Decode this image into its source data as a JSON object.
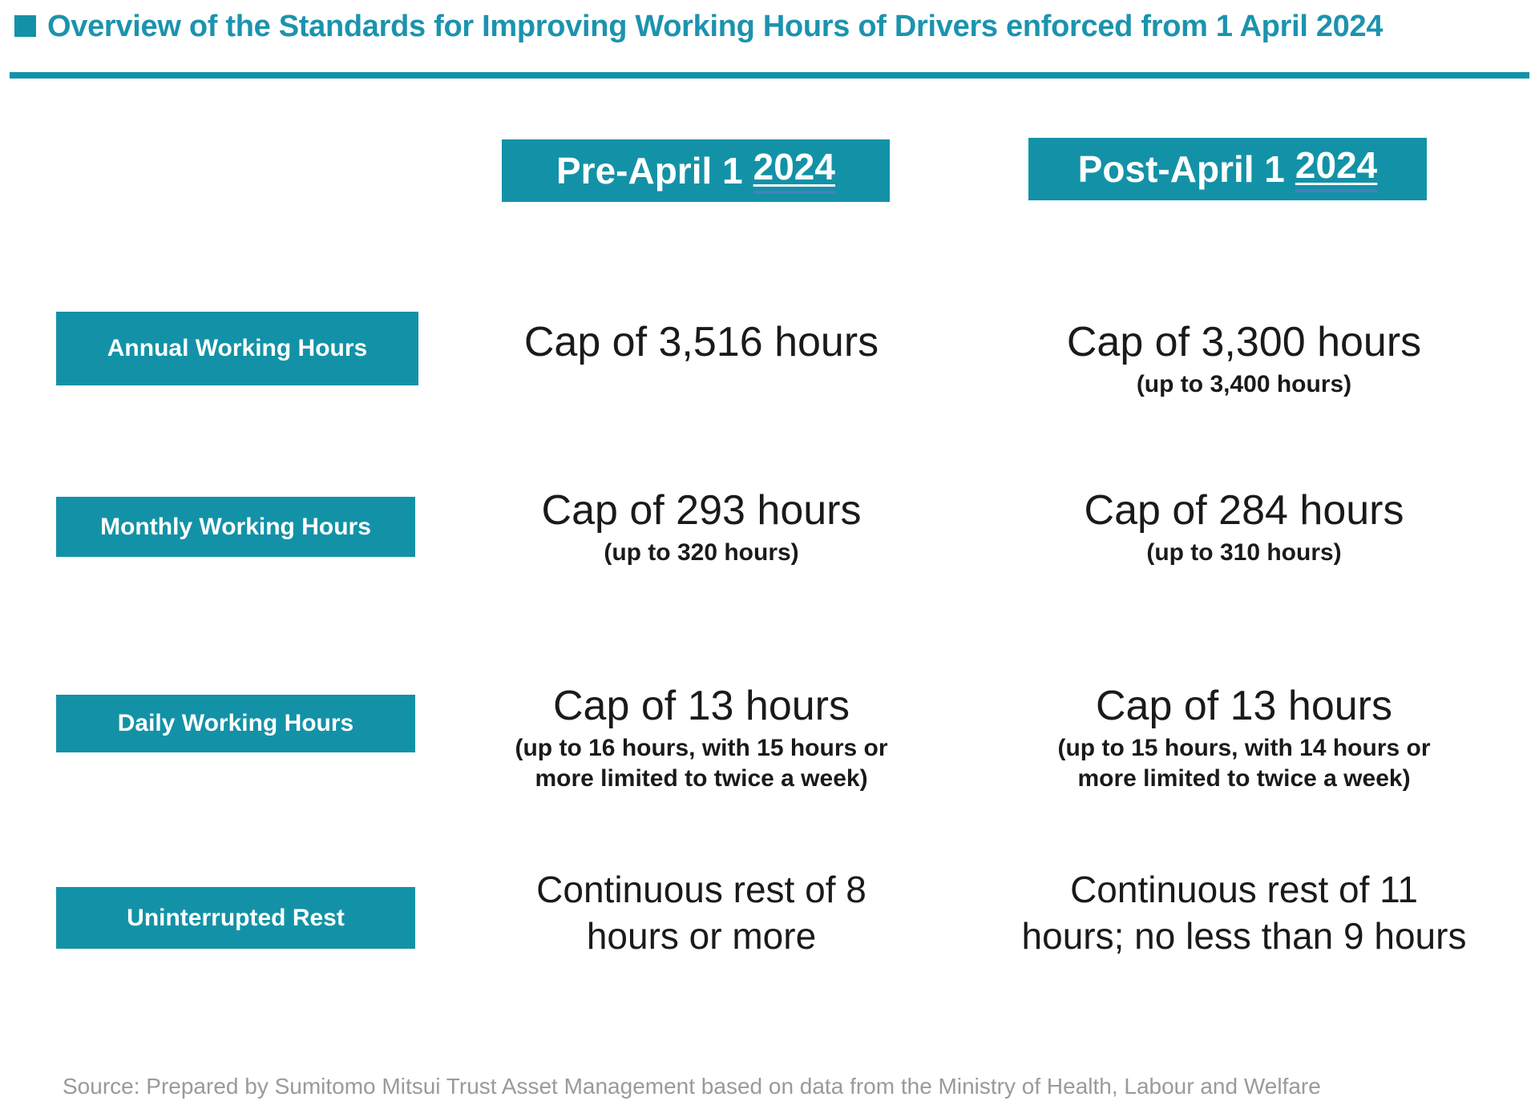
{
  "title": "Overview of the Standards for Improving Working Hours of Drivers enforced from 1 April 2024",
  "columns": {
    "pre": {
      "label": "Pre-April 1",
      "year": "2024"
    },
    "post": {
      "label": "Post-April 1",
      "year": "2024"
    }
  },
  "rows": [
    {
      "label": "Annual Working Hours",
      "pre": {
        "main": "Cap of 3,516 hours",
        "note": ""
      },
      "post": {
        "main": "Cap of 3,300 hours",
        "note": "(up to 3,400 hours)"
      }
    },
    {
      "label": "Monthly Working Hours",
      "pre": {
        "main": "Cap of 293 hours",
        "note": "(up to 320 hours)"
      },
      "post": {
        "main": "Cap of 284 hours",
        "note": "(up to 310 hours)"
      }
    },
    {
      "label": "Daily Working Hours",
      "pre": {
        "main": "Cap of 13 hours",
        "note": "(up to 16 hours, with 15 hours or\nmore limited to twice a week)"
      },
      "post": {
        "main": "Cap of 13 hours",
        "note": "(up to 15 hours, with 14 hours or\nmore limited to twice a week)"
      }
    },
    {
      "label": "Uninterrupted Rest",
      "pre": {
        "main": "Continuous rest of 8\nhours or more",
        "note": ""
      },
      "post": {
        "main": "Continuous rest of 11\nhours; no less than 9 hours",
        "note": ""
      }
    }
  ],
  "source": "Source: Prepared by Sumitomo Mitsui Trust Asset Management based on data from the Ministry of Health, Labour and Welfare",
  "colors": {
    "teal": "#1392A7",
    "title_teal": "#1B93AE",
    "underline_blue": "#4A7EBF",
    "text_black": "#1A1A1A",
    "source_gray": "#9A9A9A"
  }
}
